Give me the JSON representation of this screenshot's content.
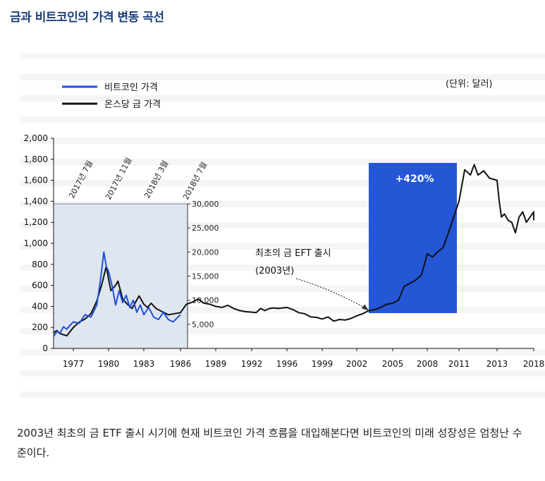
{
  "title": "금과 비트코인의 가격 변동 곡선",
  "caption": "2003년 최초의 금 ETF 출시 시기에 현재 비트코인 가격 흐름을 대입해본다면 비트코인의 미래 성장성은 엄청난 수준이다.",
  "colors": {
    "bitcoin": "#1f4fd8",
    "gold": "#111111",
    "highlight": "#2456d6",
    "inset_bg": "#dfe6ef",
    "title": "#1a3f7a"
  },
  "chart_data": {
    "type": "line",
    "title": "금과 비트코인의 가격 변동 곡선",
    "unit": "(단위: 달러)",
    "x_ticks": [
      "1977",
      "1980",
      "1983",
      "1986",
      "1989",
      "1992",
      "1996",
      "1999",
      "2002",
      "2005",
      "2008",
      "2011",
      "2013",
      "2018"
    ],
    "y_ticks": [
      "0",
      "200",
      "400",
      "600",
      "800",
      "1,000",
      "1,200",
      "1,400",
      "1,600",
      "1,800",
      "2,000"
    ],
    "ylim": [
      0,
      2000
    ],
    "legend": [
      "비트코인 가격",
      "온스당 금 가격"
    ],
    "series": [
      {
        "name": "온스당 금 가격",
        "x": [
          1974.0,
          1974.5,
          1975.0,
          1975.5,
          1976.0,
          1976.5,
          1977.0,
          1977.5,
          1978.0,
          1978.5,
          1979.0,
          1979.4,
          1979.8,
          1980.0,
          1980.2,
          1980.6,
          1980.8,
          1981.2,
          1981.6,
          1982.0,
          1982.3,
          1982.6,
          1983.0,
          1983.3,
          1983.6,
          1984.0,
          1984.5,
          1985.0,
          1985.5,
          1986.0,
          1986.5,
          1987.0,
          1987.5,
          1988.0,
          1988.5,
          1989.0,
          1989.5,
          1990.0,
          1990.5,
          1991.0,
          1991.5,
          1992.0,
          1992.5,
          1993.0,
          1993.5,
          1994.0,
          1994.5,
          1995.0,
          1995.5,
          1996.0,
          1996.5,
          1997.0,
          1997.5,
          1998.0,
          1998.5,
          1999.0,
          1999.5,
          2000.0,
          2000.5,
          2001.0,
          2001.5,
          2002.0,
          2002.5,
          2003.0,
          2003.5,
          2004.0,
          2004.5,
          2005.0,
          2005.5,
          2006.0,
          2006.5,
          2007.0,
          2007.5,
          2008.0,
          2008.5,
          2009.0,
          2009.5,
          2010.0,
          2010.5,
          2011.0,
          2011.3,
          2011.6,
          2011.8,
          2012.0,
          2012.3,
          2012.6,
          2013.0,
          2013.3,
          2013.6,
          2014.0,
          2014.5,
          2015.0,
          2015.5,
          2016.0,
          2016.5,
          2017.0,
          2017.5,
          2018.0,
          2018.5
        ],
        "y": [
          150,
          170,
          140,
          130,
          120,
          160,
          200,
          250,
          280,
          330,
          450,
          600,
          780,
          660,
          550,
          600,
          640,
          470,
          420,
          380,
          440,
          500,
          420,
          390,
          430,
          380,
          350,
          320,
          330,
          340,
          420,
          440,
          470,
          430,
          420,
          400,
          390,
          410,
          380,
          360,
          350,
          345,
          340,
          380,
          360,
          380,
          385,
          380,
          385,
          390,
          370,
          340,
          330,
          300,
          295,
          280,
          300,
          260,
          275,
          270,
          285,
          310,
          330,
          360,
          370,
          390,
          420,
          430,
          460,
          590,
          620,
          650,
          700,
          900,
          870,
          920,
          960,
          1100,
          1250,
          1400,
          1700,
          1650,
          1750,
          1650,
          1690,
          1620,
          1600,
          1400,
          1250,
          1280,
          1220,
          1200,
          1100,
          1250,
          1300,
          1200,
          1250,
          1300,
          1220
        ]
      },
      {
        "name": "비트코인 가격",
        "x": [
          1974.0,
          1974.5,
          1975.0,
          1975.5,
          1976.0,
          1976.5,
          1977.0,
          1977.5,
          1978.0,
          1978.5,
          1979.0,
          1979.3,
          1979.6,
          1979.8,
          1980.0,
          1980.3,
          1980.6,
          1980.9,
          1981.2,
          1981.5,
          1981.8,
          1982.1,
          1982.4,
          1982.7,
          1983.0,
          1983.4,
          1983.8,
          1984.2,
          1984.6,
          1985.0,
          1985.4,
          1985.8,
          1986.0
        ],
        "y": [
          2500,
          3500,
          3200,
          4500,
          4000,
          4800,
          5500,
          5200,
          7000,
          6500,
          9000,
          14000,
          20000,
          17000,
          16000,
          13000,
          9000,
          12000,
          9500,
          11000,
          8500,
          10000,
          7500,
          9000,
          7000,
          8500,
          6500,
          6000,
          7500,
          6000,
          5500,
          6500,
          7000
        ],
        "axis": "inset",
        "inset_ticks": [
          "5,000",
          "10,000",
          "15,000",
          "20,000",
          "25,000",
          "30,000"
        ],
        "inset_dates": [
          "2017년 7월",
          "2017년 11월",
          "2018년 3월",
          "2018년 7월"
        ]
      }
    ],
    "annotations": [
      {
        "text": "최초의 금 EFT 출시",
        "year": 2003
      },
      {
        "text": "(2003년)"
      },
      {
        "text": "+420%"
      }
    ]
  }
}
